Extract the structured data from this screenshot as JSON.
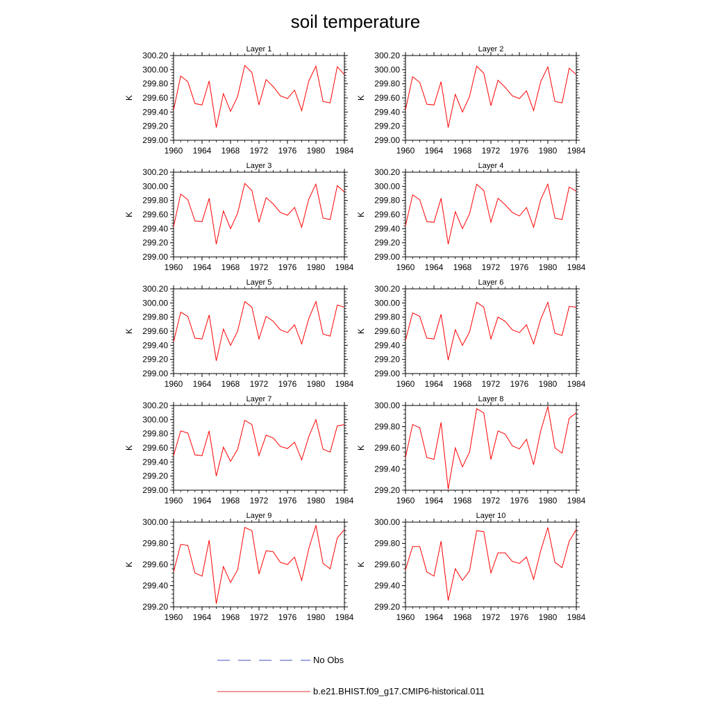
{
  "figure": {
    "title": "soil temperature"
  },
  "legend": {
    "entries": [
      {
        "label": "No Obs",
        "color": "#3f4fc0",
        "style": "dashed"
      },
      {
        "label": "b.e21.BHIST.f09_g17.CMIP6-historical.011",
        "color": "#e03030",
        "style": "solid"
      }
    ]
  },
  "chart_data": [
    {
      "type": "line",
      "title": "Layer 1",
      "xlabel": "",
      "ylabel": "K",
      "xlim": [
        1960,
        1984
      ],
      "ylim": [
        299.0,
        300.2
      ],
      "xticks": [
        "1960",
        "1964",
        "1968",
        "1972",
        "1976",
        "1980",
        "1984"
      ],
      "yticks": [
        "299.00",
        "299.20",
        "299.40",
        "299.60",
        "299.80",
        "300.00",
        "300.20"
      ],
      "x": [
        1960,
        1961,
        1962,
        1963,
        1964,
        1965,
        1966,
        1967,
        1968,
        1969,
        1970,
        1971,
        1972,
        1973,
        1974,
        1975,
        1976,
        1977,
        1978,
        1979,
        1980,
        1981,
        1982,
        1983,
        1984
      ],
      "series": [
        {
          "name": "b.e21.BHIST.f09_g17.CMIP6-historical.011",
          "color": "#ff0000",
          "values": [
            299.43,
            299.91,
            299.83,
            299.52,
            299.5,
            299.84,
            299.18,
            299.66,
            299.41,
            299.62,
            300.06,
            299.96,
            299.5,
            299.86,
            299.76,
            299.63,
            299.59,
            299.71,
            299.42,
            299.84,
            300.05,
            299.55,
            299.53,
            300.04,
            299.93
          ]
        }
      ]
    },
    {
      "type": "line",
      "title": "Layer 2",
      "xlabel": "",
      "ylabel": "K",
      "xlim": [
        1960,
        1984
      ],
      "ylim": [
        299.0,
        300.2
      ],
      "xticks": [
        "1960",
        "1964",
        "1968",
        "1972",
        "1976",
        "1980",
        "1984"
      ],
      "yticks": [
        "299.00",
        "299.20",
        "299.40",
        "299.60",
        "299.80",
        "300.00",
        "300.20"
      ],
      "x": [
        1960,
        1961,
        1962,
        1963,
        1964,
        1965,
        1966,
        1967,
        1968,
        1969,
        1970,
        1971,
        1972,
        1973,
        1974,
        1975,
        1976,
        1977,
        1978,
        1979,
        1980,
        1981,
        1982,
        1983,
        1984
      ],
      "series": [
        {
          "name": "b.e21.BHIST.f09_g17.CMIP6-historical.011",
          "color": "#ff0000",
          "values": [
            299.43,
            299.9,
            299.82,
            299.51,
            299.5,
            299.83,
            299.18,
            299.65,
            299.4,
            299.62,
            300.05,
            299.95,
            299.49,
            299.85,
            299.75,
            299.63,
            299.59,
            299.7,
            299.42,
            299.83,
            300.04,
            299.55,
            299.53,
            300.02,
            299.93
          ]
        }
      ]
    },
    {
      "type": "line",
      "title": "Layer 3",
      "xlabel": "",
      "ylabel": "K",
      "xlim": [
        1960,
        1984
      ],
      "ylim": [
        299.0,
        300.2
      ],
      "xticks": [
        "1960",
        "1964",
        "1968",
        "1972",
        "1976",
        "1980",
        "1984"
      ],
      "yticks": [
        "299.00",
        "299.20",
        "299.40",
        "299.60",
        "299.80",
        "300.00",
        "300.20"
      ],
      "x": [
        1960,
        1961,
        1962,
        1963,
        1964,
        1965,
        1966,
        1967,
        1968,
        1969,
        1970,
        1971,
        1972,
        1973,
        1974,
        1975,
        1976,
        1977,
        1978,
        1979,
        1980,
        1981,
        1982,
        1983,
        1984
      ],
      "series": [
        {
          "name": "b.e21.BHIST.f09_g17.CMIP6-historical.011",
          "color": "#ff0000",
          "values": [
            299.43,
            299.89,
            299.81,
            299.51,
            299.5,
            299.83,
            299.18,
            299.65,
            299.4,
            299.62,
            300.04,
            299.94,
            299.49,
            299.84,
            299.75,
            299.63,
            299.59,
            299.7,
            299.42,
            299.82,
            300.03,
            299.55,
            299.53,
            300.01,
            299.92
          ]
        }
      ]
    },
    {
      "type": "line",
      "title": "Layer 4",
      "xlabel": "",
      "ylabel": "K",
      "xlim": [
        1960,
        1984
      ],
      "ylim": [
        299.0,
        300.2
      ],
      "xticks": [
        "1960",
        "1964",
        "1968",
        "1972",
        "1976",
        "1980",
        "1984"
      ],
      "yticks": [
        "299.00",
        "299.20",
        "299.40",
        "299.60",
        "299.80",
        "300.00",
        "300.20"
      ],
      "x": [
        1960,
        1961,
        1962,
        1963,
        1964,
        1965,
        1966,
        1967,
        1968,
        1969,
        1970,
        1971,
        1972,
        1973,
        1974,
        1975,
        1976,
        1977,
        1978,
        1979,
        1980,
        1981,
        1982,
        1983,
        1984
      ],
      "series": [
        {
          "name": "b.e21.BHIST.f09_g17.CMIP6-historical.011",
          "color": "#ff0000",
          "values": [
            299.44,
            299.88,
            299.81,
            299.5,
            299.49,
            299.83,
            299.18,
            299.64,
            299.4,
            299.61,
            300.03,
            299.94,
            299.49,
            299.83,
            299.74,
            299.63,
            299.58,
            299.7,
            299.42,
            299.81,
            300.03,
            299.55,
            299.53,
            299.99,
            299.93
          ]
        }
      ]
    },
    {
      "type": "line",
      "title": "Layer 5",
      "xlabel": "",
      "ylabel": "K",
      "xlim": [
        1960,
        1984
      ],
      "ylim": [
        299.0,
        300.2
      ],
      "xticks": [
        "1960",
        "1964",
        "1968",
        "1972",
        "1976",
        "1980",
        "1984"
      ],
      "yticks": [
        "299.00",
        "299.20",
        "299.40",
        "299.60",
        "299.80",
        "300.00",
        "300.20"
      ],
      "x": [
        1960,
        1961,
        1962,
        1963,
        1964,
        1965,
        1966,
        1967,
        1968,
        1969,
        1970,
        1971,
        1972,
        1973,
        1974,
        1975,
        1976,
        1977,
        1978,
        1979,
        1980,
        1981,
        1982,
        1983,
        1984
      ],
      "series": [
        {
          "name": "b.e21.BHIST.f09_g17.CMIP6-historical.011",
          "color": "#ff0000",
          "values": [
            299.45,
            299.87,
            299.81,
            299.5,
            299.49,
            299.83,
            299.18,
            299.63,
            299.4,
            299.6,
            300.02,
            299.94,
            299.49,
            299.81,
            299.74,
            299.62,
            299.58,
            299.69,
            299.42,
            299.78,
            300.02,
            299.56,
            299.53,
            299.97,
            299.94
          ]
        }
      ]
    },
    {
      "type": "line",
      "title": "Layer 6",
      "xlabel": "",
      "ylabel": "K",
      "xlim": [
        1960,
        1984
      ],
      "ylim": [
        299.0,
        300.2
      ],
      "xticks": [
        "1960",
        "1964",
        "1968",
        "1972",
        "1976",
        "1980",
        "1984"
      ],
      "yticks": [
        "299.00",
        "299.20",
        "299.40",
        "299.60",
        "299.80",
        "300.00",
        "300.20"
      ],
      "x": [
        1960,
        1961,
        1962,
        1963,
        1964,
        1965,
        1966,
        1967,
        1968,
        1969,
        1970,
        1971,
        1972,
        1973,
        1974,
        1975,
        1976,
        1977,
        1978,
        1979,
        1980,
        1981,
        1982,
        1983,
        1984
      ],
      "series": [
        {
          "name": "b.e21.BHIST.f09_g17.CMIP6-historical.011",
          "color": "#ff0000",
          "values": [
            299.47,
            299.86,
            299.81,
            299.5,
            299.49,
            299.84,
            299.19,
            299.62,
            299.4,
            299.59,
            300.01,
            299.94,
            299.49,
            299.8,
            299.74,
            299.62,
            299.58,
            299.69,
            299.42,
            299.77,
            300.01,
            299.57,
            299.54,
            299.95,
            299.94
          ]
        }
      ]
    },
    {
      "type": "line",
      "title": "Layer 7",
      "xlabel": "",
      "ylabel": "K",
      "xlim": [
        1960,
        1984
      ],
      "ylim": [
        299.0,
        300.2
      ],
      "xticks": [
        "1960",
        "1964",
        "1968",
        "1972",
        "1976",
        "1980",
        "1984"
      ],
      "yticks": [
        "299.00",
        "299.20",
        "299.40",
        "299.60",
        "299.80",
        "300.00",
        "300.20"
      ],
      "x": [
        1960,
        1961,
        1962,
        1963,
        1964,
        1965,
        1966,
        1967,
        1968,
        1969,
        1970,
        1971,
        1972,
        1973,
        1974,
        1975,
        1976,
        1977,
        1978,
        1979,
        1980,
        1981,
        1982,
        1983,
        1984
      ],
      "series": [
        {
          "name": "b.e21.BHIST.f09_g17.CMIP6-historical.011",
          "color": "#ff0000",
          "values": [
            299.49,
            299.84,
            299.81,
            299.5,
            299.49,
            299.84,
            299.2,
            299.61,
            299.41,
            299.58,
            299.99,
            299.93,
            299.49,
            299.78,
            299.74,
            299.62,
            299.59,
            299.68,
            299.43,
            299.76,
            300.0,
            299.58,
            299.54,
            299.91,
            299.93
          ]
        }
      ]
    },
    {
      "type": "line",
      "title": "Layer 8",
      "xlabel": "",
      "ylabel": "K",
      "xlim": [
        1960,
        1984
      ],
      "ylim": [
        299.2,
        300.0
      ],
      "xticks": [
        "1960",
        "1964",
        "1968",
        "1972",
        "1976",
        "1980",
        "1984"
      ],
      "yticks": [
        "299.20",
        "299.40",
        "299.60",
        "299.80",
        "300.00"
      ],
      "x": [
        1960,
        1961,
        1962,
        1963,
        1964,
        1965,
        1966,
        1967,
        1968,
        1969,
        1970,
        1971,
        1972,
        1973,
        1974,
        1975,
        1976,
        1977,
        1978,
        1979,
        1980,
        1981,
        1982,
        1983,
        1984
      ],
      "series": [
        {
          "name": "b.e21.BHIST.f09_g17.CMIP6-historical.011",
          "color": "#ff0000",
          "values": [
            299.51,
            299.82,
            299.79,
            299.51,
            299.49,
            299.84,
            299.21,
            299.6,
            299.42,
            299.56,
            299.97,
            299.93,
            299.49,
            299.76,
            299.73,
            299.62,
            299.59,
            299.68,
            299.44,
            299.76,
            299.99,
            299.6,
            299.55,
            299.88,
            299.93
          ]
        }
      ]
    },
    {
      "type": "line",
      "title": "Layer 9",
      "xlabel": "",
      "ylabel": "K",
      "xlim": [
        1960,
        1984
      ],
      "ylim": [
        299.2,
        300.0
      ],
      "xticks": [
        "1960",
        "1964",
        "1968",
        "1972",
        "1976",
        "1980",
        "1984"
      ],
      "yticks": [
        "299.20",
        "299.40",
        "299.60",
        "299.80",
        "300.00"
      ],
      "x": [
        1960,
        1961,
        1962,
        1963,
        1964,
        1965,
        1966,
        1967,
        1968,
        1969,
        1970,
        1971,
        1972,
        1973,
        1974,
        1975,
        1976,
        1977,
        1978,
        1979,
        1980,
        1981,
        1982,
        1983,
        1984
      ],
      "series": [
        {
          "name": "b.e21.BHIST.f09_g17.CMIP6-historical.011",
          "color": "#ff0000",
          "values": [
            299.53,
            299.79,
            299.78,
            299.52,
            299.49,
            299.83,
            299.23,
            299.58,
            299.43,
            299.55,
            299.95,
            299.92,
            299.51,
            299.73,
            299.72,
            299.62,
            299.6,
            299.67,
            299.45,
            299.75,
            299.97,
            299.61,
            299.56,
            299.85,
            299.93
          ]
        }
      ]
    },
    {
      "type": "line",
      "title": "Layer 10",
      "xlabel": "",
      "ylabel": "K",
      "xlim": [
        1960,
        1984
      ],
      "ylim": [
        299.2,
        300.0
      ],
      "xticks": [
        "1960",
        "1964",
        "1968",
        "1972",
        "1976",
        "1980",
        "1984"
      ],
      "yticks": [
        "299.20",
        "299.40",
        "299.60",
        "299.80",
        "300.00"
      ],
      "x": [
        1960,
        1961,
        1962,
        1963,
        1964,
        1965,
        1966,
        1967,
        1968,
        1969,
        1970,
        1971,
        1972,
        1973,
        1974,
        1975,
        1976,
        1977,
        1978,
        1979,
        1980,
        1981,
        1982,
        1983,
        1984
      ],
      "series": [
        {
          "name": "b.e21.BHIST.f09_g17.CMIP6-historical.011",
          "color": "#ff0000",
          "values": [
            299.55,
            299.77,
            299.77,
            299.53,
            299.49,
            299.82,
            299.26,
            299.56,
            299.45,
            299.54,
            299.92,
            299.91,
            299.52,
            299.71,
            299.71,
            299.63,
            299.61,
            299.67,
            299.46,
            299.73,
            299.95,
            299.62,
            299.57,
            299.82,
            299.93
          ]
        }
      ]
    }
  ]
}
